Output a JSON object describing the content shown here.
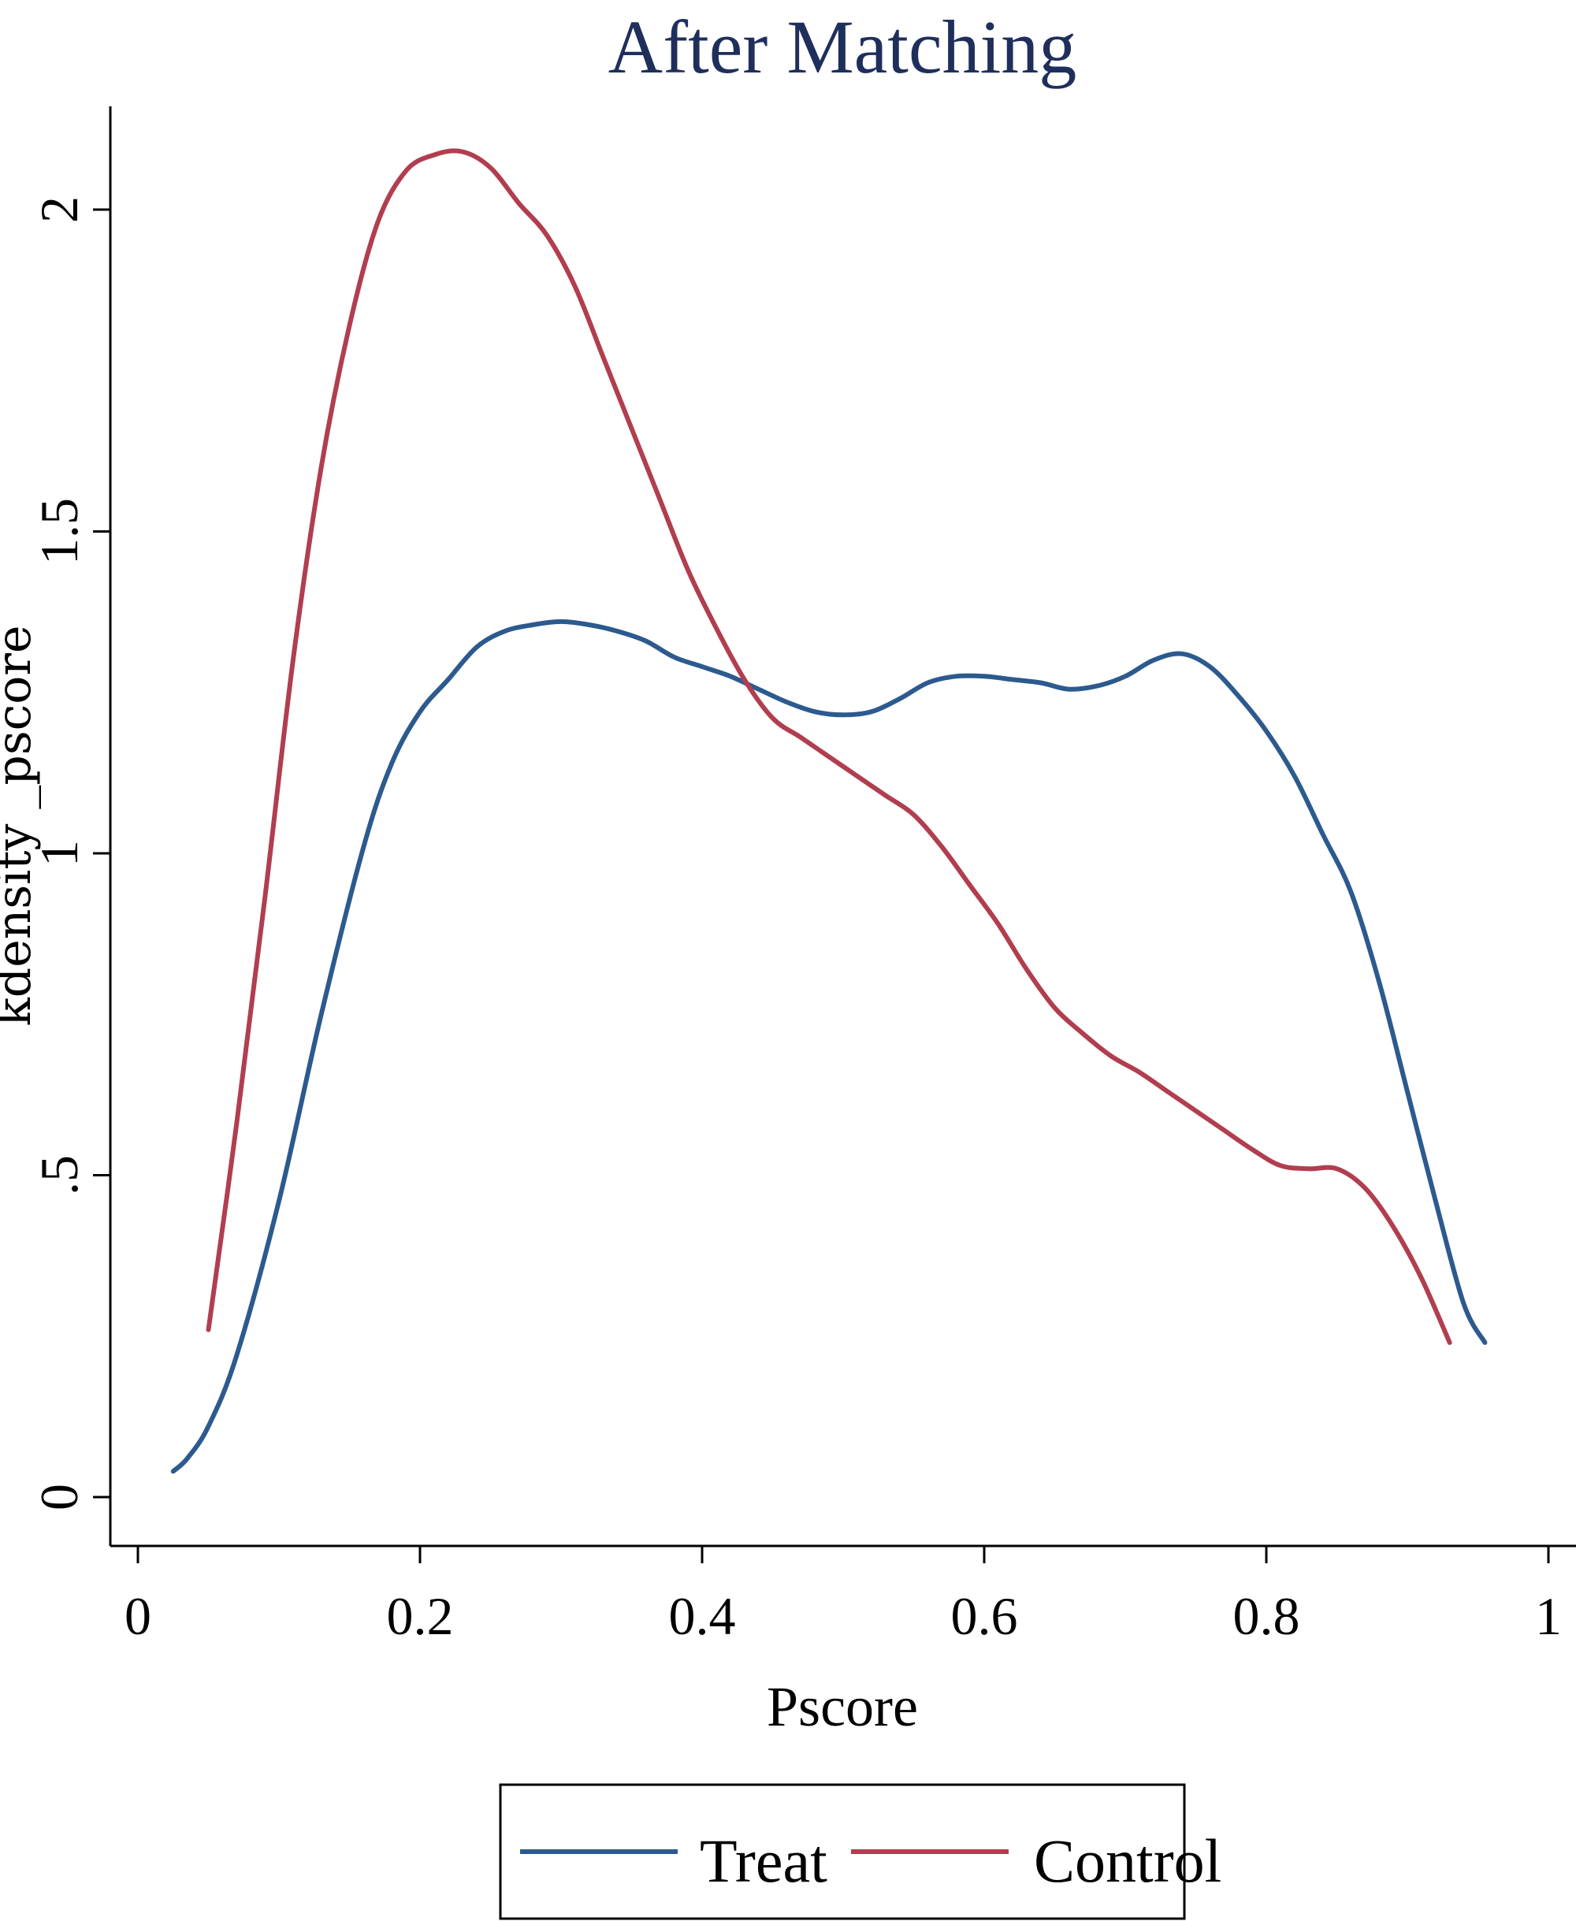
{
  "chart_data": {
    "type": "line",
    "title": "After Matching",
    "xlabel": "Pscore",
    "ylabel": "kdensity _pscore",
    "xlim": [
      0,
      1
    ],
    "ylim": [
      0,
      2.1
    ],
    "x_ticks": [
      0,
      0.2,
      0.4,
      0.6,
      0.8,
      1
    ],
    "x_tick_labels": [
      "0",
      "0.2",
      "0.4",
      "0.6",
      "0.8",
      "1"
    ],
    "y_ticks": [
      0,
      0.5,
      1,
      1.5,
      2
    ],
    "y_tick_labels": [
      "0",
      ".5",
      "1",
      "1.5",
      "2"
    ],
    "grid": false,
    "legend_position": "bottom",
    "series": [
      {
        "name": "Treat",
        "color": "#2c5a8e",
        "x": [
          0.025,
          0.035,
          0.05,
          0.07,
          0.1,
          0.13,
          0.16,
          0.18,
          0.2,
          0.22,
          0.24,
          0.26,
          0.28,
          0.3,
          0.32,
          0.34,
          0.36,
          0.38,
          0.4,
          0.42,
          0.44,
          0.46,
          0.48,
          0.5,
          0.52,
          0.54,
          0.56,
          0.58,
          0.6,
          0.62,
          0.64,
          0.66,
          0.68,
          0.7,
          0.72,
          0.74,
          0.76,
          0.78,
          0.8,
          0.82,
          0.84,
          0.86,
          0.88,
          0.9,
          0.92,
          0.94,
          0.955
        ],
        "y": [
          0.04,
          0.06,
          0.11,
          0.22,
          0.46,
          0.75,
          1.01,
          1.14,
          1.22,
          1.27,
          1.32,
          1.345,
          1.355,
          1.36,
          1.355,
          1.345,
          1.33,
          1.305,
          1.29,
          1.275,
          1.255,
          1.235,
          1.22,
          1.215,
          1.22,
          1.24,
          1.265,
          1.275,
          1.275,
          1.27,
          1.265,
          1.255,
          1.26,
          1.275,
          1.3,
          1.31,
          1.29,
          1.245,
          1.19,
          1.12,
          1.03,
          0.94,
          0.8,
          0.63,
          0.46,
          0.3,
          0.24
        ]
      },
      {
        "name": "Control",
        "color": "#b13e4f",
        "x": [
          0.05,
          0.07,
          0.09,
          0.11,
          0.13,
          0.15,
          0.17,
          0.19,
          0.21,
          0.23,
          0.25,
          0.27,
          0.29,
          0.31,
          0.33,
          0.35,
          0.37,
          0.39,
          0.41,
          0.43,
          0.45,
          0.47,
          0.49,
          0.51,
          0.53,
          0.55,
          0.57,
          0.59,
          0.61,
          0.63,
          0.65,
          0.67,
          0.69,
          0.71,
          0.73,
          0.75,
          0.77,
          0.79,
          0.81,
          0.83,
          0.85,
          0.87,
          0.89,
          0.91,
          0.93
        ],
        "y": [
          0.26,
          0.58,
          0.93,
          1.3,
          1.6,
          1.82,
          1.98,
          2.06,
          2.085,
          2.09,
          2.065,
          2.01,
          1.96,
          1.88,
          1.77,
          1.66,
          1.55,
          1.44,
          1.35,
          1.27,
          1.21,
          1.18,
          1.15,
          1.12,
          1.09,
          1.06,
          1.01,
          0.95,
          0.89,
          0.82,
          0.76,
          0.72,
          0.685,
          0.66,
          0.63,
          0.6,
          0.57,
          0.54,
          0.515,
          0.51,
          0.51,
          0.48,
          0.42,
          0.34,
          0.24
        ]
      }
    ]
  }
}
